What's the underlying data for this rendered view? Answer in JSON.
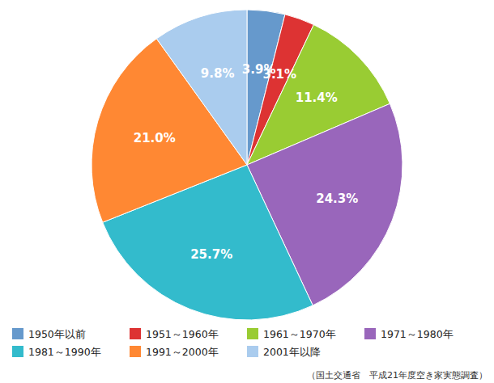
{
  "chart_data": {
    "type": "pie",
    "categories": [
      "1950年以前",
      "1951～1960年",
      "1961～1970年",
      "1971～1980年",
      "1981～1990年",
      "1991～2000年",
      "2001年以降"
    ],
    "values": [
      3.9,
      3.1,
      11.4,
      24.3,
      25.7,
      21.0,
      9.8
    ],
    "value_labels": [
      "3.9%",
      "3.1%",
      "11.4%",
      "24.3%",
      "25.7%",
      "21.0%",
      "9.8%"
    ],
    "colors": [
      "#6699CC",
      "#DD3333",
      "#99CC33",
      "#9966BB",
      "#33BBCC",
      "#FF8833",
      "#AACCEE"
    ],
    "data_labels": true,
    "legend": "bottom",
    "annotations": [
      "（国土交通省　平成21年度空き家実態調査）"
    ]
  }
}
